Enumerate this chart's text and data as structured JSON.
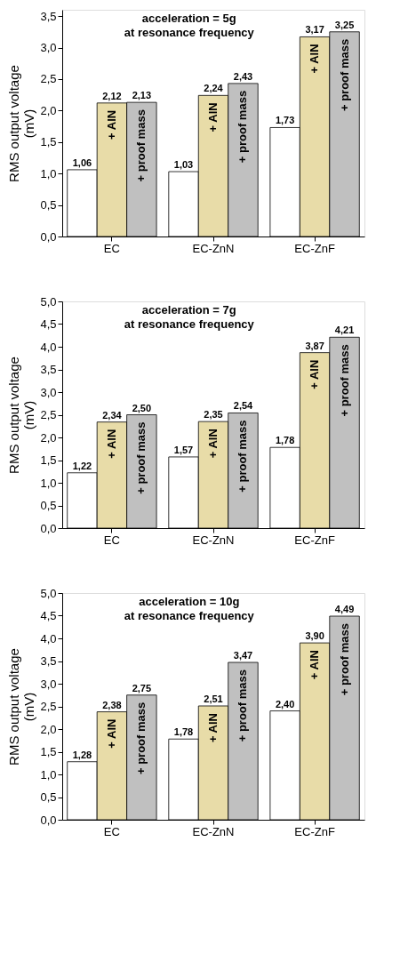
{
  "chart_data": [
    {
      "type": "bar",
      "ylabel": "RMS output voltage\n(mV)",
      "categories": [
        "EC",
        "EC-ZnN",
        "EC-ZnF"
      ],
      "annotations": [
        "acceleration = 5g",
        "at resonance frequency"
      ],
      "series": [
        {
          "color": "#ffffff",
          "values": [
            1.06,
            1.03,
            1.73
          ],
          "value_labels": [
            "1,06",
            "1,03",
            "1,73"
          ]
        },
        {
          "name": "+ AlN",
          "color": "#e8dca8",
          "values": [
            2.12,
            2.24,
            3.17
          ],
          "value_labels": [
            "2,12",
            "2,24",
            "3,17"
          ]
        },
        {
          "name": "+ proof mass",
          "color": "#c0c0c0",
          "values": [
            2.13,
            2.43,
            3.25
          ],
          "value_labels": [
            "2,13",
            "2,43",
            "3,25"
          ]
        }
      ],
      "ylim": [
        0,
        3.6
      ],
      "yticks": [
        {
          "value": 0,
          "label": "0,0"
        },
        {
          "value": 0.5,
          "label": "0,5"
        },
        {
          "value": 1,
          "label": "1,0"
        },
        {
          "value": 1.5,
          "label": "1,5"
        },
        {
          "value": 2,
          "label": "2,0"
        },
        {
          "value": 2.5,
          "label": "2,5"
        },
        {
          "value": 3,
          "label": "3,0"
        },
        {
          "value": 3.5,
          "label": "3,5"
        }
      ],
      "grid": false,
      "legend": false
    },
    {
      "type": "bar",
      "ylabel": "RMS output voltage\n(mV)",
      "categories": [
        "EC",
        "EC-ZnN",
        "EC-ZnF"
      ],
      "annotations": [
        "acceleration = 7g",
        "at resonance frequency"
      ],
      "series": [
        {
          "color": "#ffffff",
          "values": [
            1.22,
            1.57,
            1.78
          ],
          "value_labels": [
            "1,22",
            "1,57",
            "1,78"
          ]
        },
        {
          "name": "+ AlN",
          "color": "#e8dca8",
          "values": [
            2.34,
            2.35,
            3.87
          ],
          "value_labels": [
            "2,34",
            "2,35",
            "3,87"
          ]
        },
        {
          "name": "+ proof mass",
          "color": "#c0c0c0",
          "values": [
            2.5,
            2.54,
            4.21
          ],
          "value_labels": [
            "2,50",
            "2,54",
            "4,21"
          ]
        }
      ],
      "ylim": [
        0,
        5.0
      ],
      "yticks": [
        {
          "value": 0,
          "label": "0,0"
        },
        {
          "value": 0.5,
          "label": "0,5"
        },
        {
          "value": 1,
          "label": "1,0"
        },
        {
          "value": 1.5,
          "label": "1,5"
        },
        {
          "value": 2,
          "label": "2,0"
        },
        {
          "value": 2.5,
          "label": "2,5"
        },
        {
          "value": 3,
          "label": "3,0"
        },
        {
          "value": 3.5,
          "label": "3,5"
        },
        {
          "value": 4,
          "label": "4,0"
        },
        {
          "value": 4.5,
          "label": "4,5"
        },
        {
          "value": 5,
          "label": "5,0"
        }
      ],
      "grid": false,
      "legend": false
    },
    {
      "type": "bar",
      "ylabel": "RMS output voltage\n(mV)",
      "categories": [
        "EC",
        "EC-ZnN",
        "EC-ZnF"
      ],
      "annotations": [
        "acceleration = 10g",
        "at resonance frequency"
      ],
      "series": [
        {
          "color": "#ffffff",
          "values": [
            1.28,
            1.78,
            2.4
          ],
          "value_labels": [
            "1,28",
            "1,78",
            "2,40"
          ]
        },
        {
          "name": "+ AlN",
          "color": "#e8dca8",
          "values": [
            2.38,
            2.51,
            3.9
          ],
          "value_labels": [
            "2,38",
            "2,51",
            "3,90"
          ]
        },
        {
          "name": "+ proof mass",
          "color": "#c0c0c0",
          "values": [
            2.75,
            3.47,
            4.49
          ],
          "value_labels": [
            "2,75",
            "3,47",
            "4,49"
          ]
        }
      ],
      "ylim": [
        0,
        5.0
      ],
      "yticks": [
        {
          "value": 0,
          "label": "0,0"
        },
        {
          "value": 0.5,
          "label": "0,5"
        },
        {
          "value": 1,
          "label": "1,0"
        },
        {
          "value": 1.5,
          "label": "1,5"
        },
        {
          "value": 2,
          "label": "2,0"
        },
        {
          "value": 2.5,
          "label": "2,5"
        },
        {
          "value": 3,
          "label": "3,0"
        },
        {
          "value": 3.5,
          "label": "3,5"
        },
        {
          "value": 4,
          "label": "4,0"
        },
        {
          "value": 4.5,
          "label": "4,5"
        },
        {
          "value": 5,
          "label": "5,0"
        }
      ],
      "grid": false,
      "legend": false
    }
  ]
}
